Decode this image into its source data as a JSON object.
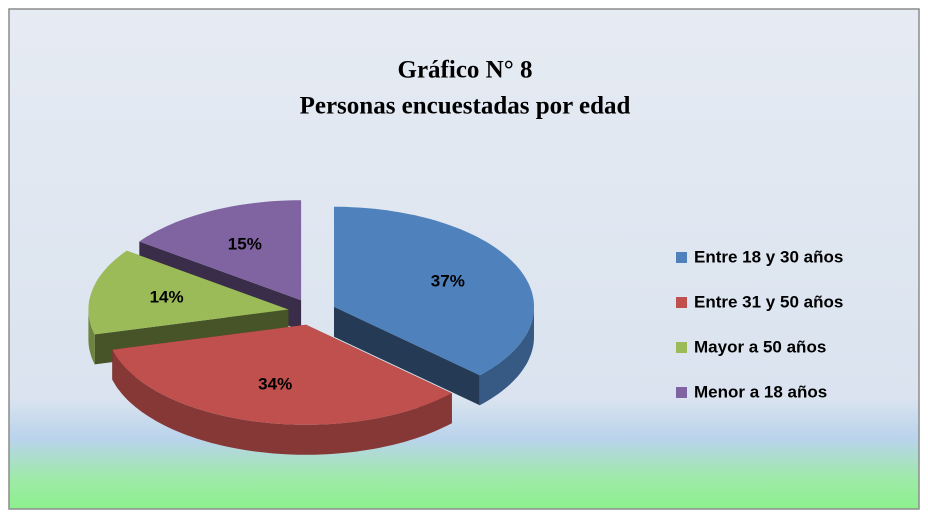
{
  "chart_data": {
    "type": "pie",
    "title": "Gráfico N° 8",
    "subtitle": "Personas encuestadas por edad",
    "categories": [
      "Entre 18 y 30 años",
      "Entre 31 y 50 años",
      "Mayor a 50 años",
      "Menor a 18 años"
    ],
    "values": [
      37,
      34,
      14,
      15
    ],
    "value_labels": [
      "37%",
      "34%",
      "14%",
      "15%"
    ],
    "colors": [
      "#4f81bd",
      "#c0504d",
      "#9bbb59",
      "#8064a2"
    ],
    "legend": "right"
  }
}
